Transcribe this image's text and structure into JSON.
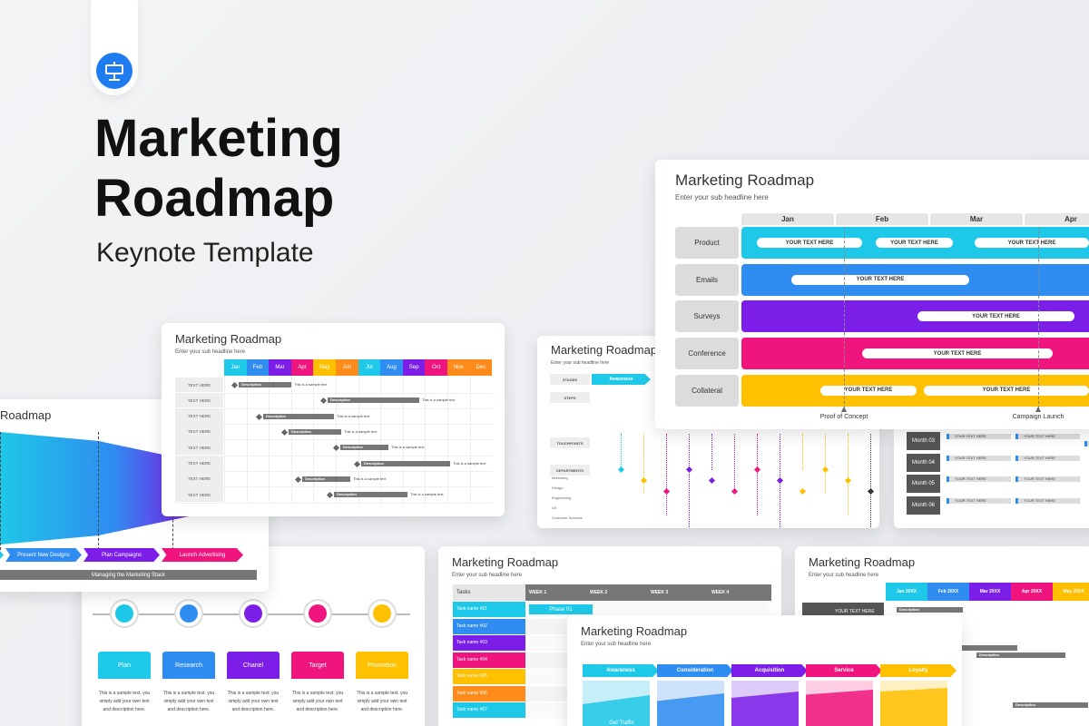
{
  "header": {
    "title": [
      "Marketing",
      "Roadmap"
    ],
    "subtitle": "Keynote Template"
  },
  "slides": {
    "roadmap": {
      "title": "Marketing Roadmap",
      "subtitle": "Enter your sub headline here",
      "months": [
        "Jan",
        "Feb",
        "Mar",
        "Apr"
      ],
      "rows": [
        {
          "label": "Product",
          "pills": [
            "YOUR TEXT HERE",
            "YOUR TEXT HERE",
            "YOUR TEXT HERE"
          ]
        },
        {
          "label": "Emails",
          "pills": [
            "YOUR TEXT HERE"
          ]
        },
        {
          "label": "Surveys",
          "pills": [
            "YOUR TEXT HERE"
          ]
        },
        {
          "label": "Conference",
          "pills": [
            "YOUR TEXT HERE"
          ]
        },
        {
          "label": "Collateral",
          "pills": [
            "YOUR TEXT HERE",
            "YOUR TEXT HERE"
          ]
        }
      ],
      "milestones": [
        "Proof of Concept",
        "Campaign Launch"
      ]
    },
    "gantt": {
      "title": "Marketing Roadmap",
      "subtitle": "Enter your sub headline here",
      "months": [
        "Jan",
        "Feb",
        "Mar",
        "Apr",
        "May",
        "Jun",
        "Jul",
        "Aug",
        "Sep",
        "Oct",
        "Nov",
        "Dec"
      ],
      "rows": [
        {
          "label": "TEXT HERE",
          "bar": "Description",
          "note": "This is a sample text"
        },
        {
          "label": "TEXT HERE",
          "bar": "Description",
          "note": "This is a sample text"
        },
        {
          "label": "TEXT HERE",
          "bar": "Description",
          "note": "This is a sample text"
        },
        {
          "label": "TEXT HERE",
          "bar": "Description",
          "note": "This is a sample text"
        },
        {
          "label": "TEXT HERE",
          "bar": "Description",
          "note": "This is a sample text"
        },
        {
          "label": "TEXT HERE",
          "bar": "Description",
          "note": "This is a sample text"
        },
        {
          "label": "TEXT HERE",
          "bar": "Description",
          "note": "This is a sample text"
        },
        {
          "label": "TEXT HERE",
          "bar": "Description",
          "note": "This is a sample text"
        }
      ]
    },
    "funnel": {
      "title": "Roadmap",
      "steps": [
        "ps",
        "Present New Designs",
        "Plan Campaigns",
        "Launch Advertising"
      ],
      "footer": "Managing the Marketing Stack"
    },
    "icons": {
      "steps": [
        {
          "label": "Plan",
          "text": "This is a sample text. you simply add your own text and description here."
        },
        {
          "label": "Research",
          "text": "This is a sample text. you simply add your own text and description here."
        },
        {
          "label": "Chanel",
          "text": "This is a sample text. you simply add your own text and description here."
        },
        {
          "label": "Target",
          "text": "This is a sample text. you simply add your own text and description here."
        },
        {
          "label": "Promotion",
          "text": "This is a sample text. you simply add your own text and description here."
        }
      ]
    },
    "weekly": {
      "title": "Marketing Roadmap",
      "subtitle": "Enter your sub headline here",
      "tasks_header": "Tasks",
      "weeks": [
        "WEEK 1",
        "WEEK 2",
        "WEEK 3",
        "WEEK 4"
      ],
      "phase": "Phase 01",
      "tasks": [
        "Task name #01",
        "Task name #02",
        "Task name #03",
        "Task name #04",
        "Task name #05",
        "Task name #06",
        "Task name #07"
      ]
    },
    "monthly": {
      "title": "Marketing Roadmap",
      "subtitle": "Enter your sub headline here",
      "months": [
        "Jan 20XX",
        "Feb 20XX",
        "Mar 20XX",
        "Apr 20XX",
        "May 20XX"
      ],
      "row": "YOUR TEXT HERE",
      "bars": [
        "Description",
        "Description",
        "Description",
        "Description"
      ]
    },
    "stages": {
      "title": "Marketing Roadmap",
      "subtitle": "Enter your sub headline here",
      "stages": [
        "Awareness",
        "Consideration",
        "Acquisition",
        "Service",
        "Loyalty"
      ],
      "note": "Get Traffic"
    },
    "touchpoints": {
      "title": "Marketing Roadmap",
      "subtitle": "Enter your sub headline here",
      "labels": [
        "STAGES",
        "STEPS",
        "TOUCHPOINTS",
        "DEPARTMENTS"
      ],
      "stage": "Awareness",
      "departments": [
        "Marketing",
        "Design",
        "Engineering",
        "UX",
        "Customer Success"
      ]
    },
    "months": {
      "rows": [
        {
          "label": "Month 03",
          "pills": [
            "YOUR TEXT HERE",
            "YOUR TEXT HERE",
            "YOUR TEXT HERE"
          ]
        },
        {
          "label": "Month 04",
          "pills": [
            "YOUR TEXT HERE",
            "YOUR TEXT HERE"
          ]
        },
        {
          "label": "Month 05",
          "pills": [
            "YOUR TEXT HERE",
            "YOUR TEXT HERE"
          ]
        },
        {
          "label": "Month 06",
          "pills": [
            "YOUR TEXT HERE",
            "YOUR TEXT HERE"
          ]
        }
      ]
    }
  }
}
